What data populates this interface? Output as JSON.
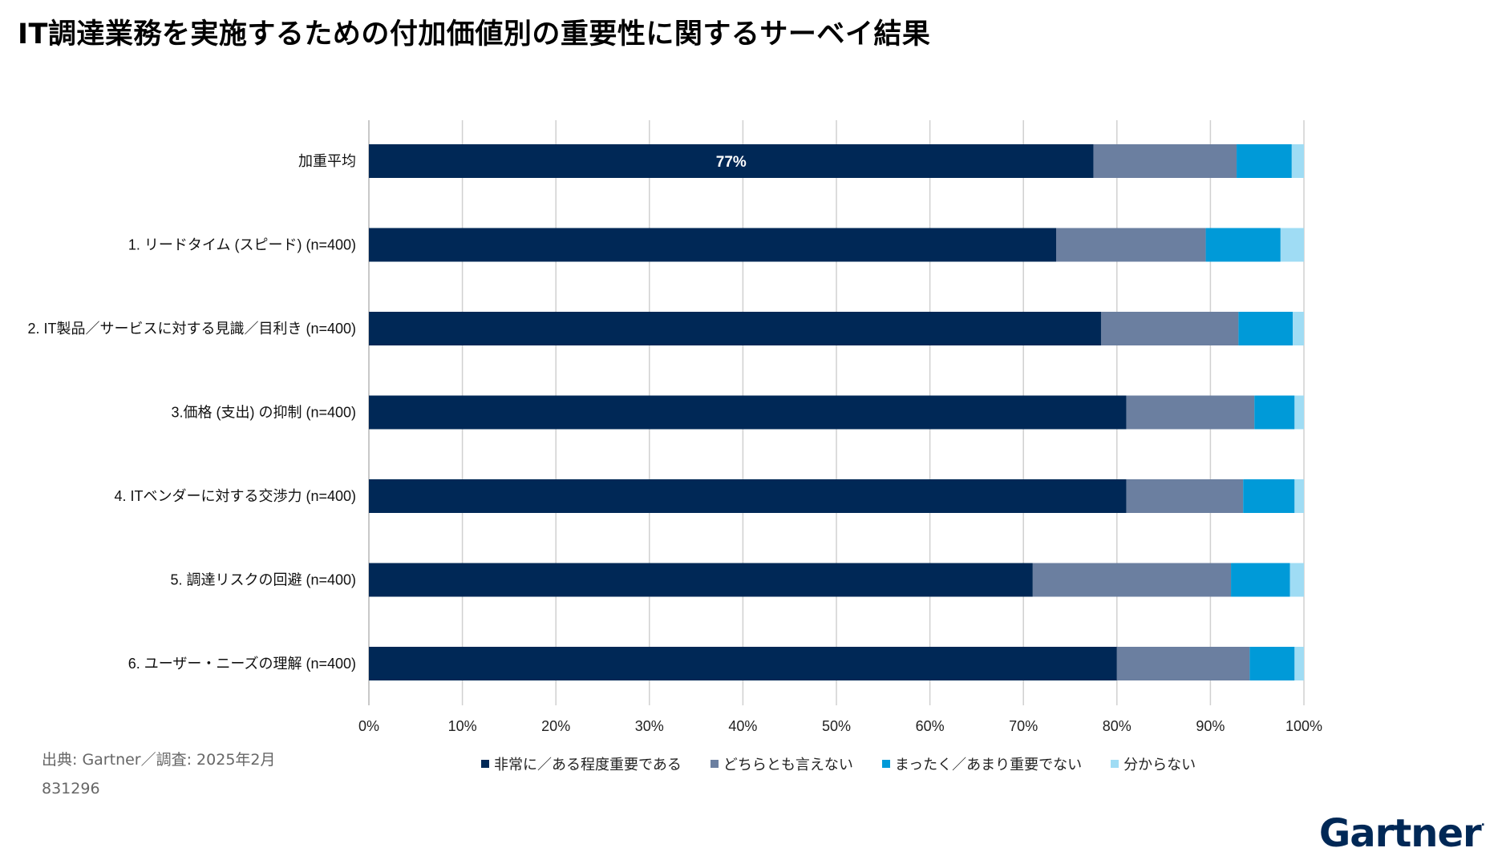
{
  "title": "IT調達業務を実施するための付加価値別の重要性に関するサーベイ結果",
  "source": "出典: Gartner／調査: 2025年2月",
  "id": "831296",
  "logo": "Gartner",
  "colors": {
    "very_important": "#002856",
    "neutral": "#6b7fa0",
    "not_important": "#009ad8",
    "unknown": "#9fdcf4"
  },
  "chart_data": {
    "type": "bar",
    "orientation": "horizontal",
    "stacked": true,
    "categories": [
      "加重平均",
      "1. リードタイム (スピード) (n=400)",
      "2. IT製品／サービスに対する見識／目利き (n=400)",
      "3.価格 (支出) の抑制 (n=400)",
      "4. ITベンダーに対する交渉力 (n=400)",
      "5. 調達リスクの回避 (n=400)",
      "6. ユーザー・ニーズの理解 (n=400)"
    ],
    "series": [
      {
        "name": "非常に／ある程度重要である",
        "color_key": "very_important",
        "values": [
          77.5,
          73.5,
          78.3,
          81.0,
          81.0,
          71.0,
          80.0
        ]
      },
      {
        "name": "どちらとも言えない",
        "color_key": "neutral",
        "values": [
          15.3,
          16.0,
          14.7,
          13.7,
          12.5,
          21.2,
          14.2
        ]
      },
      {
        "name": "まったく／あまり重要でない",
        "color_key": "not_important",
        "values": [
          5.9,
          8.0,
          5.8,
          4.3,
          5.5,
          6.3,
          4.8
        ]
      },
      {
        "name": "分からない",
        "color_key": "unknown",
        "values": [
          1.3,
          2.5,
          1.2,
          1.0,
          1.0,
          1.5,
          1.0
        ]
      }
    ],
    "data_labels": [
      {
        "category_index": 0,
        "series_index": 0,
        "text": "77%"
      }
    ],
    "x_ticks": [
      "0%",
      "10%",
      "20%",
      "30%",
      "40%",
      "50%",
      "60%",
      "70%",
      "80%",
      "90%",
      "100%"
    ],
    "xlim": [
      0,
      100
    ],
    "grid": true,
    "legend_position": "bottom"
  }
}
